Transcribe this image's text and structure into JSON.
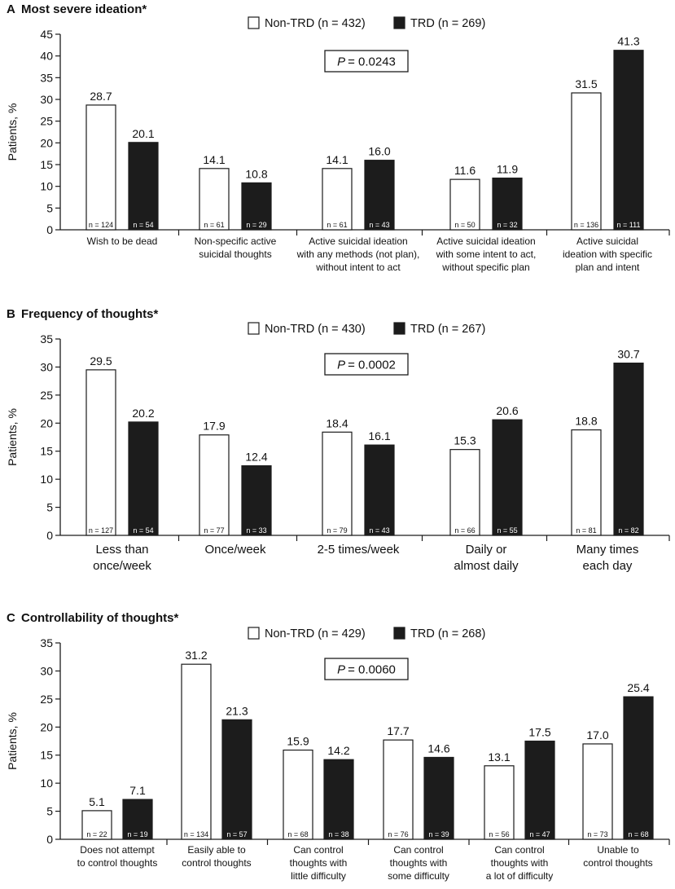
{
  "colors": {
    "non_trd": "#ffffff",
    "trd": "#1c1c1c",
    "stroke": "#1c1c1c"
  },
  "axis_title": "Patients, %",
  "chart_data": [
    {
      "type": "bar",
      "letter": "A",
      "title": "Most severe ideation*",
      "legend": [
        "Non-TRD (n = 432)",
        "TRD (n = 269)"
      ],
      "p_label": "P",
      "p_value": "= 0.0243",
      "ylabel": "Patients, %",
      "ylim": [
        0,
        45
      ],
      "ticks": [
        0,
        5,
        10,
        15,
        20,
        25,
        30,
        35,
        40,
        45
      ],
      "categories": [
        [
          "Wish to be dead"
        ],
        [
          "Non-specific active",
          "suicidal thoughts"
        ],
        [
          "Active suicidal ideation",
          "with any methods (not plan),",
          "without intent to act"
        ],
        [
          "Active suicidal ideation",
          "with some intent to act,",
          "without specific plan"
        ],
        [
          "Active suicidal",
          "ideation with specific",
          "plan and intent"
        ]
      ],
      "series": [
        {
          "name": "Non-TRD",
          "values": [
            28.7,
            14.1,
            14.1,
            11.6,
            31.5
          ],
          "labels": [
            "28.7",
            "14.1",
            "14.1",
            "11.6",
            "31.5"
          ],
          "n": [
            "n = 124",
            "n = 61",
            "n = 61",
            "n = 50",
            "n = 136"
          ]
        },
        {
          "name": "TRD",
          "values": [
            20.1,
            10.8,
            16.0,
            11.9,
            41.3
          ],
          "labels": [
            "20.1",
            "10.8",
            "16.0",
            "11.9",
            "41.3"
          ],
          "n": [
            "n = 54",
            "n = 29",
            "n = 43",
            "n = 32",
            "n = 111"
          ]
        }
      ]
    },
    {
      "type": "bar",
      "letter": "B",
      "title": "Frequency of thoughts*",
      "legend": [
        "Non-TRD (n = 430)",
        "TRD (n = 267)"
      ],
      "p_label": "P",
      "p_value": "= 0.0002",
      "ylabel": "Patients, %",
      "ylim": [
        0,
        35
      ],
      "ticks": [
        0,
        5,
        10,
        15,
        20,
        25,
        30,
        35
      ],
      "categories": [
        [
          "Less than",
          "once/week"
        ],
        [
          "Once/week"
        ],
        [
          "2-5 times/week"
        ],
        [
          "Daily or",
          "almost daily"
        ],
        [
          "Many times",
          "each day"
        ]
      ],
      "series": [
        {
          "name": "Non-TRD",
          "values": [
            29.5,
            17.9,
            18.4,
            15.3,
            18.8
          ],
          "labels": [
            "29.5",
            "17.9",
            "18.4",
            "15.3",
            "18.8"
          ],
          "n": [
            "n = 127",
            "n = 77",
            "n = 79",
            "n = 66",
            "n = 81"
          ]
        },
        {
          "name": "TRD",
          "values": [
            20.2,
            12.4,
            16.1,
            20.6,
            30.7
          ],
          "labels": [
            "20.2",
            "12.4",
            "16.1",
            "20.6",
            "30.7"
          ],
          "n": [
            "n = 54",
            "n = 33",
            "n = 43",
            "n = 55",
            "n = 82"
          ]
        }
      ]
    },
    {
      "type": "bar",
      "letter": "C",
      "title": "Controllability of thoughts*",
      "legend": [
        "Non-TRD (n = 429)",
        "TRD (n = 268)"
      ],
      "p_label": "P",
      "p_value": "= 0.0060",
      "ylabel": "Patients, %",
      "ylim": [
        0,
        35
      ],
      "ticks": [
        0,
        5,
        10,
        15,
        20,
        25,
        30,
        35
      ],
      "categories": [
        [
          "Does not attempt",
          "to control thoughts"
        ],
        [
          "Easily able to",
          "control thoughts"
        ],
        [
          "Can control",
          "thoughts with",
          "little difficulty"
        ],
        [
          "Can control",
          "thoughts with",
          "some difficulty"
        ],
        [
          "Can control",
          "thoughts with",
          "a lot of difficulty"
        ],
        [
          "Unable to",
          "control thoughts"
        ]
      ],
      "series": [
        {
          "name": "Non-TRD",
          "values": [
            5.1,
            31.2,
            15.9,
            17.7,
            13.1,
            17.0
          ],
          "labels": [
            "5.1",
            "31.2",
            "15.9",
            "17.7",
            "13.1",
            "17.0"
          ],
          "n": [
            "n = 22",
            "n = 134",
            "n = 68",
            "n = 76",
            "n = 56",
            "n = 73"
          ]
        },
        {
          "name": "TRD",
          "values": [
            7.1,
            21.3,
            14.2,
            14.6,
            17.5,
            25.4
          ],
          "labels": [
            "7.1",
            "21.3",
            "14.2",
            "14.6",
            "17.5",
            "25.4"
          ],
          "n": [
            "n = 19",
            "n = 57",
            "n = 38",
            "n = 39",
            "n = 47",
            "n = 68"
          ]
        }
      ]
    }
  ]
}
